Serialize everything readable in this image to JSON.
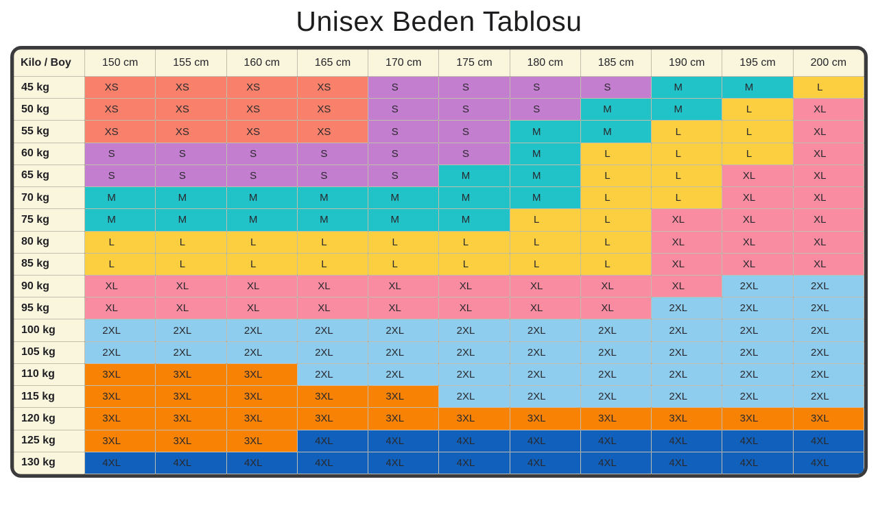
{
  "title": "Unisex Beden Tablosu",
  "colors": {
    "frame_border": "#3b3b3d",
    "header_bg": "#faf6de",
    "grid_line": "rgba(45,45,45,0.28)",
    "text": "#28282c",
    "title_text": "#1d1d1f"
  },
  "chart_data": {
    "type": "table",
    "title": "Unisex Beden Tablosu",
    "corner_label": "Kilo / Boy",
    "columns": [
      "150 cm",
      "155 cm",
      "160 cm",
      "165 cm",
      "170 cm",
      "175 cm",
      "180 cm",
      "185 cm",
      "190 cm",
      "195 cm",
      "200 cm"
    ],
    "size_colors": {
      "XS": "#f9816b",
      "S": "#c47ecf",
      "M": "#21c3c9",
      "L": "#fccf40",
      "XL": "#fa8ca2",
      "2XL": "#8fcdee",
      "3XL": "#f88203",
      "4XL": "#1161bc"
    },
    "rows": [
      {
        "label": "45 kg",
        "values": [
          "XS",
          "XS",
          "XS",
          "XS",
          "S",
          "S",
          "S",
          "S",
          "M",
          "M",
          "L"
        ]
      },
      {
        "label": "50 kg",
        "values": [
          "XS",
          "XS",
          "XS",
          "XS",
          "S",
          "S",
          "S",
          "M",
          "M",
          "L",
          "XL"
        ]
      },
      {
        "label": "55 kg",
        "values": [
          "XS",
          "XS",
          "XS",
          "XS",
          "S",
          "S",
          "M",
          "M",
          "L",
          "L",
          "XL"
        ]
      },
      {
        "label": "60 kg",
        "values": [
          "S",
          "S",
          "S",
          "S",
          "S",
          "S",
          "M",
          "L",
          "L",
          "L",
          "XL"
        ]
      },
      {
        "label": "65 kg",
        "values": [
          "S",
          "S",
          "S",
          "S",
          "S",
          "M",
          "M",
          "L",
          "L",
          "XL",
          "XL"
        ]
      },
      {
        "label": "70 kg",
        "values": [
          "M",
          "M",
          "M",
          "M",
          "M",
          "M",
          "M",
          "L",
          "L",
          "XL",
          "XL"
        ]
      },
      {
        "label": "75 kg",
        "values": [
          "M",
          "M",
          "M",
          "M",
          "M",
          "M",
          "L",
          "L",
          "XL",
          "XL",
          "XL"
        ]
      },
      {
        "label": "80 kg",
        "values": [
          "L",
          "L",
          "L",
          "L",
          "L",
          "L",
          "L",
          "L",
          "XL",
          "XL",
          "XL"
        ]
      },
      {
        "label": "85 kg",
        "values": [
          "L",
          "L",
          "L",
          "L",
          "L",
          "L",
          "L",
          "L",
          "XL",
          "XL",
          "XL"
        ]
      },
      {
        "label": "90 kg",
        "values": [
          "XL",
          "XL",
          "XL",
          "XL",
          "XL",
          "XL",
          "XL",
          "XL",
          "XL",
          "2XL",
          "2XL"
        ]
      },
      {
        "label": "95 kg",
        "values": [
          "XL",
          "XL",
          "XL",
          "XL",
          "XL",
          "XL",
          "XL",
          "XL",
          "2XL",
          "2XL",
          "2XL"
        ]
      },
      {
        "label": "100 kg",
        "values": [
          "2XL",
          "2XL",
          "2XL",
          "2XL",
          "2XL",
          "2XL",
          "2XL",
          "2XL",
          "2XL",
          "2XL",
          "2XL"
        ]
      },
      {
        "label": "105 kg",
        "values": [
          "2XL",
          "2XL",
          "2XL",
          "2XL",
          "2XL",
          "2XL",
          "2XL",
          "2XL",
          "2XL",
          "2XL",
          "2XL"
        ]
      },
      {
        "label": "110 kg",
        "values": [
          "3XL",
          "3XL",
          "3XL",
          "2XL",
          "2XL",
          "2XL",
          "2XL",
          "2XL",
          "2XL",
          "2XL",
          "2XL"
        ]
      },
      {
        "label": "115 kg",
        "values": [
          "3XL",
          "3XL",
          "3XL",
          "3XL",
          "3XL",
          "2XL",
          "2XL",
          "2XL",
          "2XL",
          "2XL",
          "2XL"
        ]
      },
      {
        "label": "120 kg",
        "values": [
          "3XL",
          "3XL",
          "3XL",
          "3XL",
          "3XL",
          "3XL",
          "3XL",
          "3XL",
          "3XL",
          "3XL",
          "3XL"
        ]
      },
      {
        "label": "125 kg",
        "values": [
          "3XL",
          "3XL",
          "3XL",
          "4XL",
          "4XL",
          "4XL",
          "4XL",
          "4XL",
          "4XL",
          "4XL",
          "4XL"
        ]
      },
      {
        "label": "130 kg",
        "values": [
          "4XL",
          "4XL",
          "4XL",
          "4XL",
          "4XL",
          "4XL",
          "4XL",
          "4XL",
          "4XL",
          "4XL",
          "4XL"
        ]
      }
    ]
  }
}
